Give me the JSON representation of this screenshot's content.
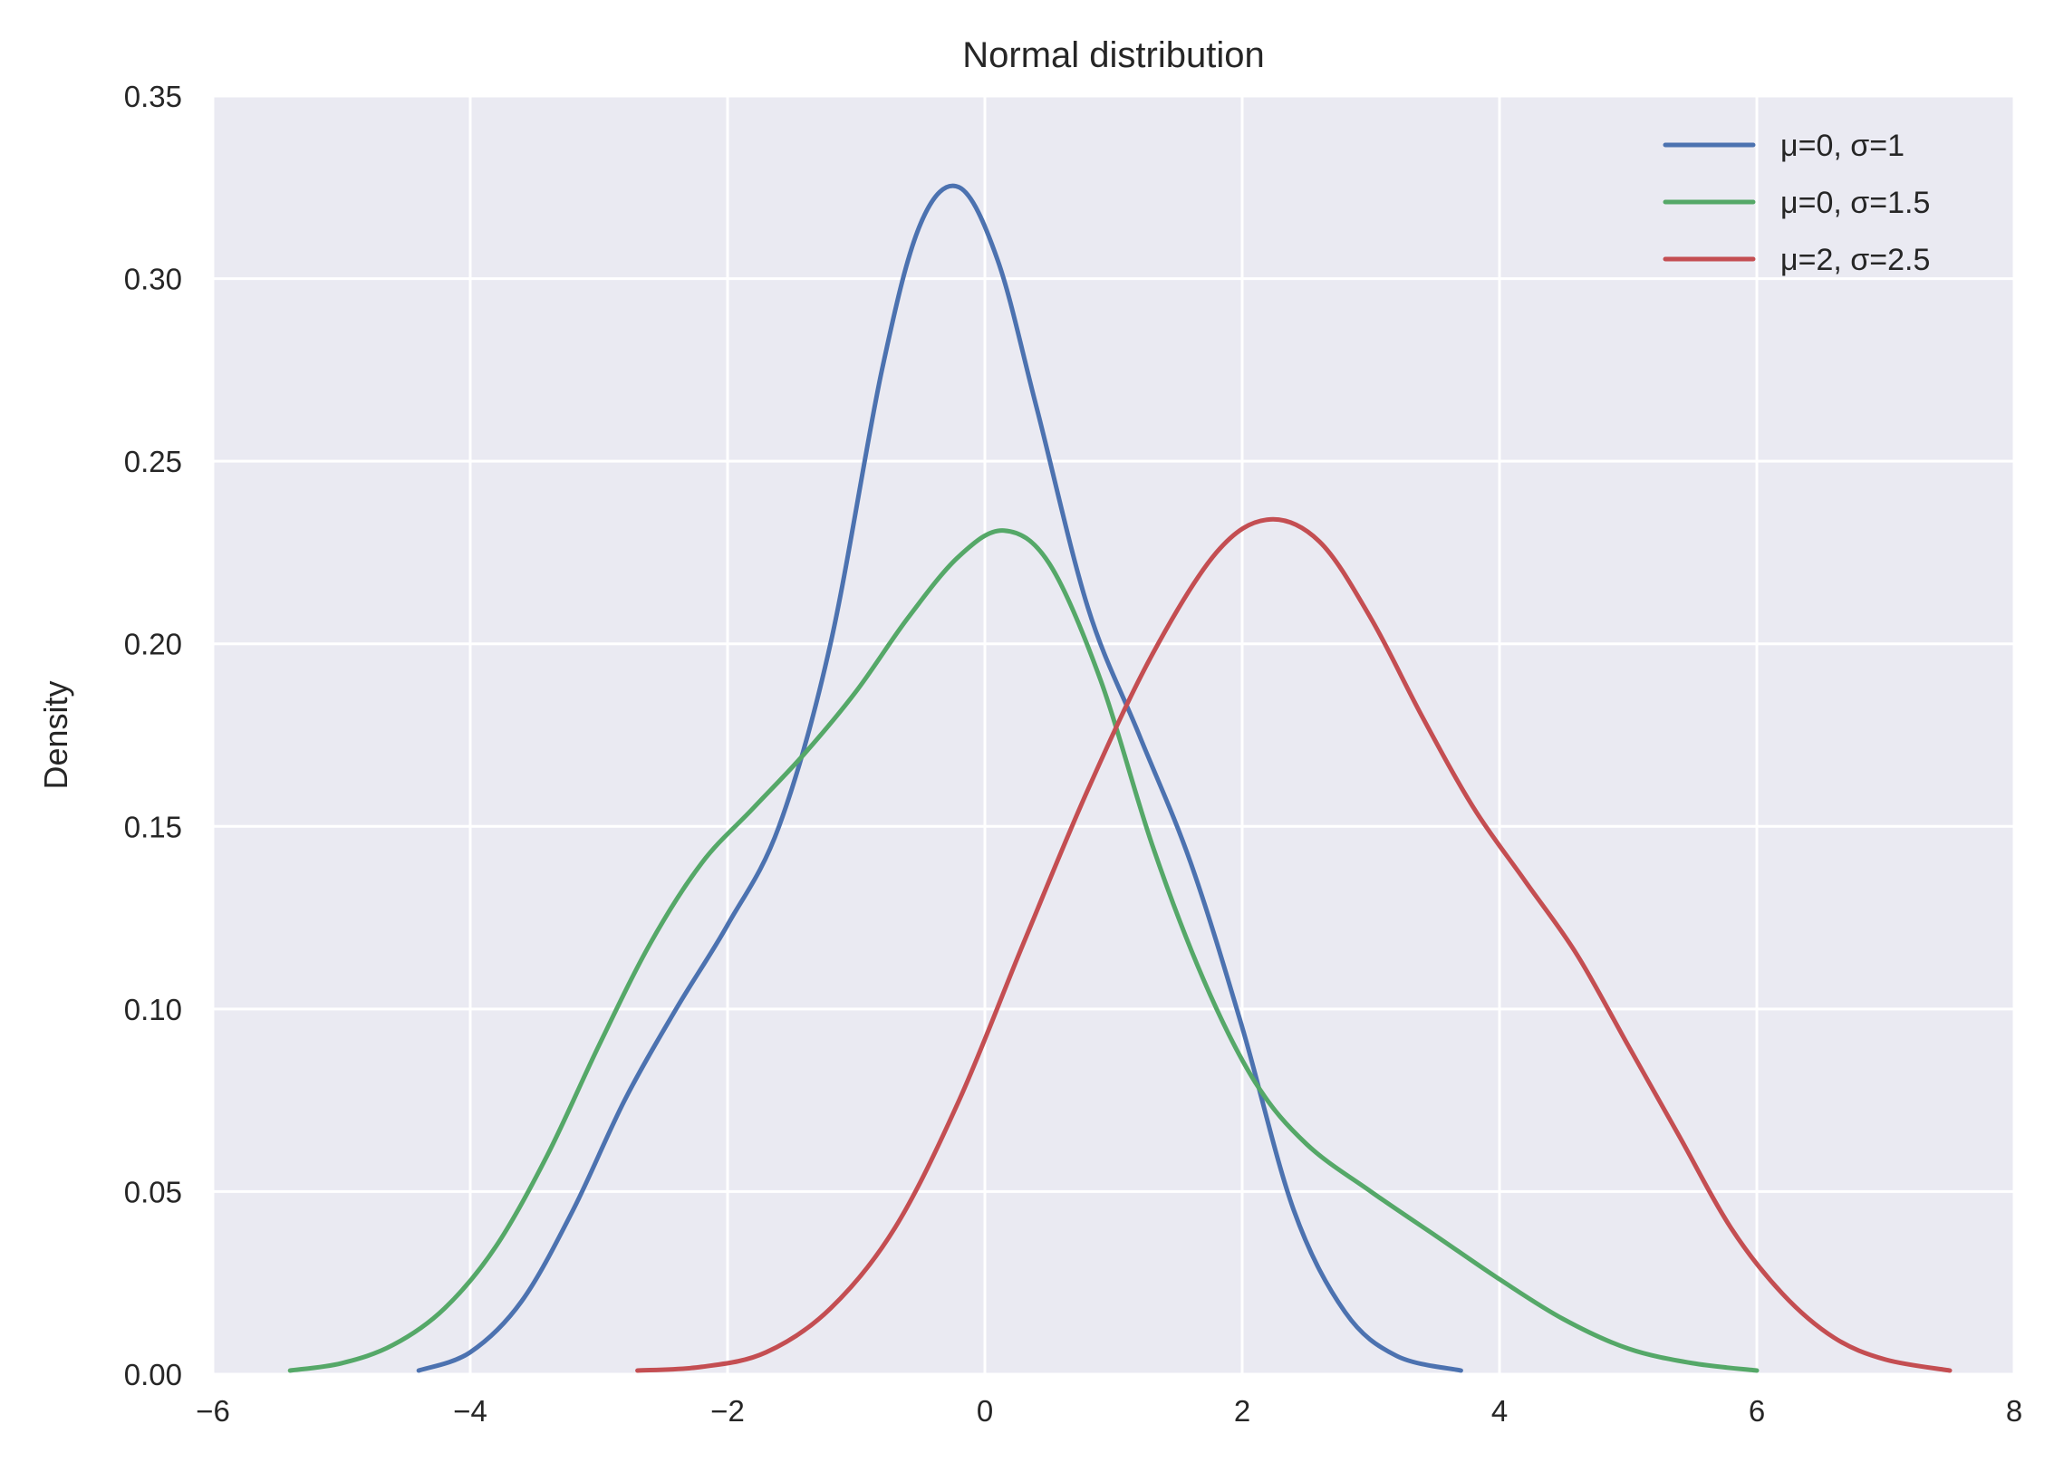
{
  "chart_data": {
    "type": "line",
    "title": "Normal distribution",
    "xlabel": "",
    "ylabel": "Density",
    "xlim": [
      -6,
      8
    ],
    "ylim": [
      0,
      0.35
    ],
    "xticks": [
      -6,
      -4,
      -2,
      0,
      2,
      4,
      6,
      8
    ],
    "xtick_labels": [
      "−6",
      "−4",
      "−2",
      "0",
      "2",
      "4",
      "6",
      "8"
    ],
    "yticks": [
      0,
      0.05,
      0.1,
      0.15,
      0.2,
      0.25,
      0.3,
      0.35
    ],
    "ytick_labels": [
      "0.00",
      "0.05",
      "0.10",
      "0.15",
      "0.20",
      "0.25",
      "0.30",
      "0.35"
    ],
    "grid": true,
    "legend_position": "top-right",
    "background_color": "#eaeaf2",
    "series": [
      {
        "name": "μ=0, σ=1",
        "color": "#4c72b0",
        "points": [
          [
            -4.4,
            0.001
          ],
          [
            -4.0,
            0.006
          ],
          [
            -3.6,
            0.02
          ],
          [
            -3.2,
            0.045
          ],
          [
            -2.8,
            0.075
          ],
          [
            -2.4,
            0.1
          ],
          [
            -2.0,
            0.123
          ],
          [
            -1.6,
            0.15
          ],
          [
            -1.2,
            0.2
          ],
          [
            -0.8,
            0.275
          ],
          [
            -0.5,
            0.315
          ],
          [
            -0.2,
            0.325
          ],
          [
            0.1,
            0.305
          ],
          [
            0.4,
            0.265
          ],
          [
            0.8,
            0.21
          ],
          [
            1.2,
            0.175
          ],
          [
            1.6,
            0.14
          ],
          [
            2.0,
            0.095
          ],
          [
            2.4,
            0.045
          ],
          [
            2.8,
            0.017
          ],
          [
            3.2,
            0.005
          ],
          [
            3.7,
            0.001
          ]
        ]
      },
      {
        "name": "μ=0, σ=1.5",
        "color": "#55a868",
        "points": [
          [
            -5.4,
            0.001
          ],
          [
            -5.0,
            0.003
          ],
          [
            -4.6,
            0.008
          ],
          [
            -4.2,
            0.018
          ],
          [
            -3.8,
            0.035
          ],
          [
            -3.4,
            0.06
          ],
          [
            -3.0,
            0.09
          ],
          [
            -2.6,
            0.118
          ],
          [
            -2.2,
            0.14
          ],
          [
            -1.8,
            0.155
          ],
          [
            -1.4,
            0.17
          ],
          [
            -1.0,
            0.187
          ],
          [
            -0.6,
            0.207
          ],
          [
            -0.2,
            0.224
          ],
          [
            0.15,
            0.231
          ],
          [
            0.5,
            0.222
          ],
          [
            0.9,
            0.19
          ],
          [
            1.3,
            0.145
          ],
          [
            1.7,
            0.108
          ],
          [
            2.1,
            0.08
          ],
          [
            2.5,
            0.063
          ],
          [
            3.0,
            0.05
          ],
          [
            3.5,
            0.038
          ],
          [
            4.0,
            0.026
          ],
          [
            4.5,
            0.015
          ],
          [
            5.0,
            0.007
          ],
          [
            5.5,
            0.003
          ],
          [
            6.0,
            0.001
          ]
        ]
      },
      {
        "name": "μ=2, σ=2.5",
        "color": "#c44e52",
        "points": [
          [
            -2.7,
            0.001
          ],
          [
            -2.2,
            0.002
          ],
          [
            -1.7,
            0.006
          ],
          [
            -1.2,
            0.018
          ],
          [
            -0.7,
            0.04
          ],
          [
            -0.2,
            0.075
          ],
          [
            0.3,
            0.118
          ],
          [
            0.8,
            0.16
          ],
          [
            1.3,
            0.197
          ],
          [
            1.8,
            0.225
          ],
          [
            2.2,
            0.234
          ],
          [
            2.6,
            0.228
          ],
          [
            3.0,
            0.207
          ],
          [
            3.4,
            0.18
          ],
          [
            3.8,
            0.155
          ],
          [
            4.2,
            0.135
          ],
          [
            4.6,
            0.115
          ],
          [
            5.0,
            0.09
          ],
          [
            5.4,
            0.065
          ],
          [
            5.8,
            0.04
          ],
          [
            6.2,
            0.022
          ],
          [
            6.6,
            0.01
          ],
          [
            7.0,
            0.004
          ],
          [
            7.5,
            0.001
          ]
        ]
      }
    ]
  }
}
